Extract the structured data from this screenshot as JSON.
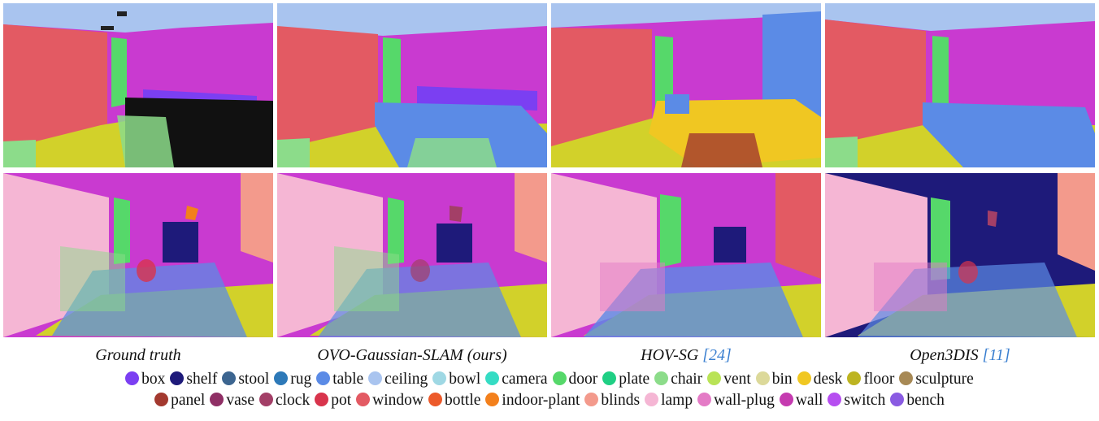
{
  "figure": {
    "columns": [
      {
        "caption": "Ground truth",
        "cite": ""
      },
      {
        "caption": "OVO-Gaussian-SLAM (ours)",
        "cite": ""
      },
      {
        "caption": "HOV-SG ",
        "cite": "[24]"
      },
      {
        "caption": "Open3DIS ",
        "cite": "[11]"
      }
    ],
    "legend_row1": [
      {
        "label": "box",
        "color": "#7b3ff2"
      },
      {
        "label": "shelf",
        "color": "#1e1a7a"
      },
      {
        "label": "stool",
        "color": "#3c6590"
      },
      {
        "label": "rug",
        "color": "#2d79b8"
      },
      {
        "label": "table",
        "color": "#5b8be6"
      },
      {
        "label": "ceiling",
        "color": "#a9c4ef"
      },
      {
        "label": "bowl",
        "color": "#9fd8e4"
      },
      {
        "label": "camera",
        "color": "#35dcc4"
      },
      {
        "label": "door",
        "color": "#56d86a"
      },
      {
        "label": "plate",
        "color": "#1fcf84"
      },
      {
        "label": "chair",
        "color": "#8cdc8a"
      },
      {
        "label": "vent",
        "color": "#b9e356"
      },
      {
        "label": "bin",
        "color": "#dcd99a"
      },
      {
        "label": "desk",
        "color": "#f0c722"
      },
      {
        "label": "floor",
        "color": "#bdb421"
      },
      {
        "label": "sculpture",
        "color": "#a78955"
      }
    ],
    "legend_row2": [
      {
        "label": "panel",
        "color": "#a3392f"
      },
      {
        "label": "vase",
        "color": "#8f2f65"
      },
      {
        "label": "clock",
        "color": "#a33f67"
      },
      {
        "label": "pot",
        "color": "#d8344c"
      },
      {
        "label": "window",
        "color": "#e35a63"
      },
      {
        "label": "bottle",
        "color": "#ec5a2a"
      },
      {
        "label": "indoor-plant",
        "color": "#f3801c"
      },
      {
        "label": "blinds",
        "color": "#f39a8c"
      },
      {
        "label": "lamp",
        "color": "#f5b6d4"
      },
      {
        "label": "wall-plug",
        "color": "#e47bc6"
      },
      {
        "label": "wall",
        "color": "#c53bb0"
      },
      {
        "label": "switch",
        "color": "#b64ef0"
      },
      {
        "label": "bench",
        "color": "#8a5be2"
      }
    ]
  }
}
